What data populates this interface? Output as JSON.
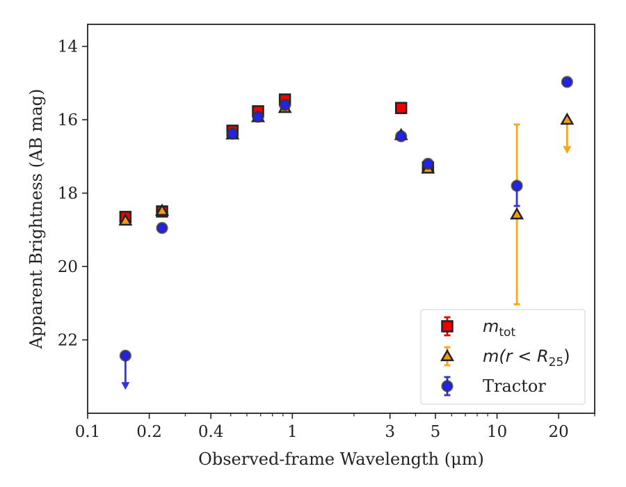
{
  "chart_data": {
    "type": "scatter",
    "xlabel": "Observed-frame Wavelength (μm)",
    "ylabel": "Apparent Brightness (AB mag)",
    "xscale": "log",
    "xlim": [
      0.1,
      30
    ],
    "ylim": [
      24,
      13.4
    ],
    "y_inverted": true,
    "x_ticks": [
      0.1,
      0.2,
      0.4,
      1,
      3,
      5,
      10,
      20
    ],
    "x_tick_labels": [
      "0.1",
      "0.2",
      "0.4",
      "1",
      "3",
      "5",
      "10",
      "20"
    ],
    "y_ticks": [
      14,
      16,
      18,
      20,
      22
    ],
    "y_tick_labels": [
      "14",
      "16",
      "18",
      "20",
      "22"
    ],
    "legend_position": "lower right",
    "series": [
      {
        "name": "m_tot",
        "legend_base": "m",
        "legend_sub": "tot",
        "marker": "square",
        "color": "#ee0000",
        "errcolor": "#ee0000",
        "points": [
          {
            "x": 0.153,
            "y": 18.65,
            "err": 0.05
          },
          {
            "x": 0.231,
            "y": 18.5,
            "err": 0.04
          },
          {
            "x": 0.51,
            "y": 16.3,
            "err": 0.04
          },
          {
            "x": 0.68,
            "y": 15.77,
            "err": 0.04
          },
          {
            "x": 0.92,
            "y": 15.45,
            "err": 0.04
          },
          {
            "x": 3.4,
            "y": 15.68,
            "err": 0.04
          },
          {
            "x": 4.6,
            "y": 17.3,
            "err": 0.04
          }
        ]
      },
      {
        "name": "m(r < R25)",
        "legend_base": "m(r < R",
        "legend_sub": "25",
        "legend_tail": ")",
        "marker": "triangle",
        "color": "#f39c12",
        "errcolor": "#f5a623",
        "points": [
          {
            "x": 0.153,
            "y": 18.75,
            "err": 0.04
          },
          {
            "x": 0.231,
            "y": 18.48,
            "err": 0.04
          },
          {
            "x": 0.51,
            "y": 16.4,
            "err": 0.04
          },
          {
            "x": 0.68,
            "y": 15.93,
            "err": 0.04
          },
          {
            "x": 0.92,
            "y": 15.68,
            "err": 0.04
          },
          {
            "x": 3.4,
            "y": 16.42,
            "err": 0.04
          },
          {
            "x": 4.6,
            "y": 17.33,
            "err": 0.04
          },
          {
            "x": 12.5,
            "y": 18.58,
            "err_low": 2.45,
            "err_high": 2.45
          },
          {
            "x": 22.0,
            "y": 16.0,
            "upper_limit": true
          }
        ]
      },
      {
        "name": "Tractor",
        "legend_base": "Tractor",
        "marker": "circle",
        "color": "#2222ee",
        "errcolor": "#3333dd",
        "points": [
          {
            "x": 0.153,
            "y": 22.43,
            "upper_limit": true
          },
          {
            "x": 0.231,
            "y": 18.95,
            "err": 0.04
          },
          {
            "x": 0.51,
            "y": 16.38,
            "err": 0.04
          },
          {
            "x": 0.68,
            "y": 15.92,
            "err": 0.04
          },
          {
            "x": 0.92,
            "y": 15.6,
            "err": 0.04
          },
          {
            "x": 3.4,
            "y": 16.45,
            "err": 0.04
          },
          {
            "x": 4.6,
            "y": 17.2,
            "err": 0.04
          },
          {
            "x": 12.5,
            "y": 17.8,
            "err_low": 0.0,
            "err_high": 0.55
          },
          {
            "x": 22.0,
            "y": 14.97,
            "err": 0.04
          }
        ]
      }
    ]
  }
}
